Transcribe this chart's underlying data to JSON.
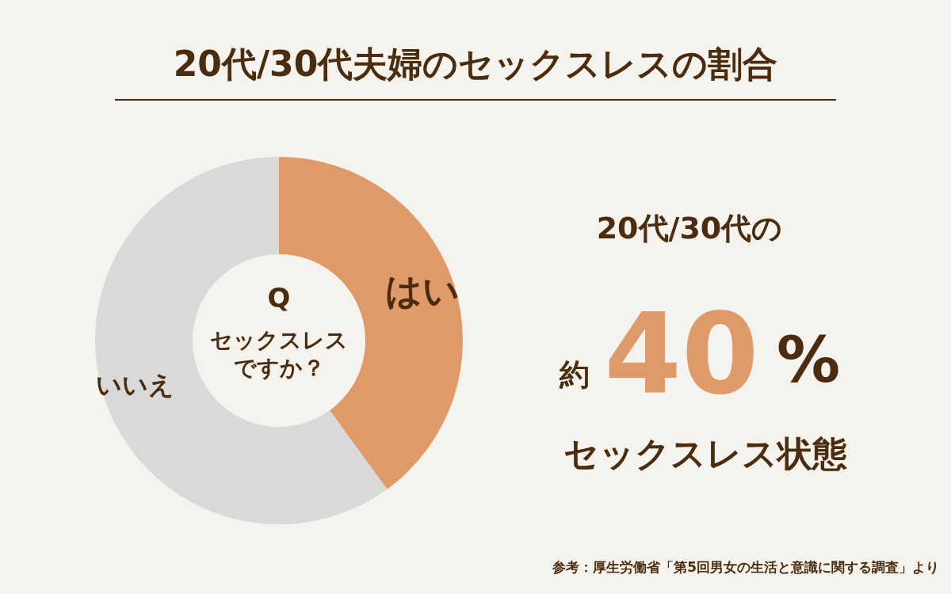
{
  "chart_data": {
    "type": "donut",
    "title": "20代/30代夫婦のセックスレスの割合",
    "categories": [
      "はい",
      "いいえ"
    ],
    "values": [
      40,
      60
    ],
    "colors": [
      "#e09a6a",
      "#d9d9d9"
    ],
    "legend": false,
    "annotations": [
      "Q",
      "セックスレスですか？",
      "20代/30代の",
      "約",
      "40",
      "%",
      "セックスレス状態",
      "参考：厚生労働省「第5回男女の生活と意識に関する調査」より"
    ]
  }
}
